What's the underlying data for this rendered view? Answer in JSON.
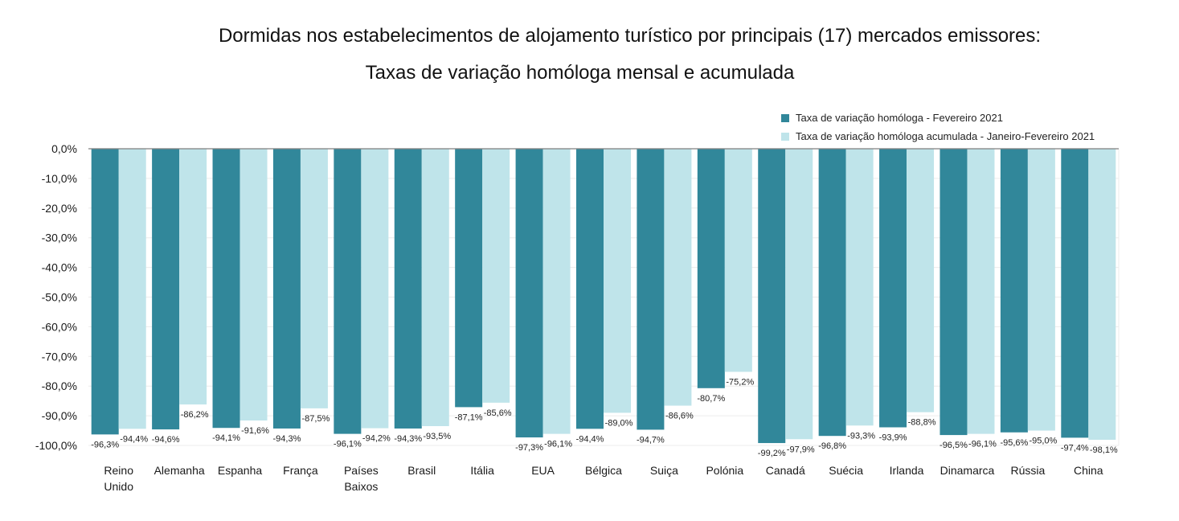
{
  "title_line1": "Dormidas nos estabelecimentos de alojamento turístico por principais (17) mercados emissores:",
  "title_line2": "Taxas de variação homóloga mensal e acumulada",
  "colors": {
    "series1": "#31879a",
    "series2": "#bfe4ea",
    "axis": "#7f7f7f",
    "grid": "#ececec"
  },
  "chart_data": {
    "type": "bar",
    "categories": [
      [
        "Reino",
        "Unido"
      ],
      [
        "Alemanha"
      ],
      [
        "Espanha"
      ],
      [
        "França"
      ],
      [
        "Países",
        "Baixos"
      ],
      [
        "Brasil"
      ],
      [
        "Itália"
      ],
      [
        "EUA"
      ],
      [
        "Bélgica"
      ],
      [
        "Suiça"
      ],
      [
        "Polónia"
      ],
      [
        "Canadá"
      ],
      [
        "Suécia"
      ],
      [
        "Irlanda"
      ],
      [
        "Dinamarca"
      ],
      [
        "Rússia"
      ],
      [
        "China"
      ]
    ],
    "series": [
      {
        "name": "Taxa de variação homóloga - Fevereiro 2021",
        "values": [
          -96.3,
          -94.6,
          -94.1,
          -94.3,
          -96.1,
          -94.3,
          -87.1,
          -97.3,
          -94.4,
          -94.7,
          -80.7,
          -99.2,
          -96.8,
          -93.9,
          -96.5,
          -95.6,
          -97.4
        ],
        "labels": [
          "-96,3%",
          "-94,6%",
          "-94,1%",
          "-94,3%",
          "-96,1%",
          "-94,3%",
          "-87,1%",
          "-97,3%",
          "-94,4%",
          "-94,7%",
          "-80,7%",
          "-99,2%",
          "-96,8%",
          "-93,9%",
          "-96,5%",
          "-95,6%",
          "-97,4%"
        ]
      },
      {
        "name": "Taxa de variação homóloga acumulada - Janeiro-Fevereiro 2021",
        "values": [
          -94.4,
          -86.2,
          -91.6,
          -87.5,
          -94.2,
          -93.5,
          -85.6,
          -96.1,
          -89.0,
          -86.6,
          -75.2,
          -97.9,
          -93.3,
          -88.8,
          -96.1,
          -95.0,
          -98.1
        ],
        "labels": [
          "-94,4%",
          "-86,2%",
          "-91,6%",
          "-87,5%",
          "-94,2%",
          "-93,5%",
          "-85,6%",
          "-96,1%",
          "-89,0%",
          "-86,6%",
          "-75,2%",
          "-97,9%",
          "-93,3%",
          "-88,8%",
          "-96,1%",
          "-95,0%",
          "-98,1%"
        ]
      }
    ],
    "y_ticks": [
      "0,0%",
      "-10,0%",
      "-20,0%",
      "-30,0%",
      "-40,0%",
      "-50,0%",
      "-60,0%",
      "-70,0%",
      "-80,0%",
      "-90,0%",
      "-100,0%"
    ],
    "ylim": [
      -100,
      0
    ],
    "grid": true,
    "legend_position": "top-right"
  }
}
